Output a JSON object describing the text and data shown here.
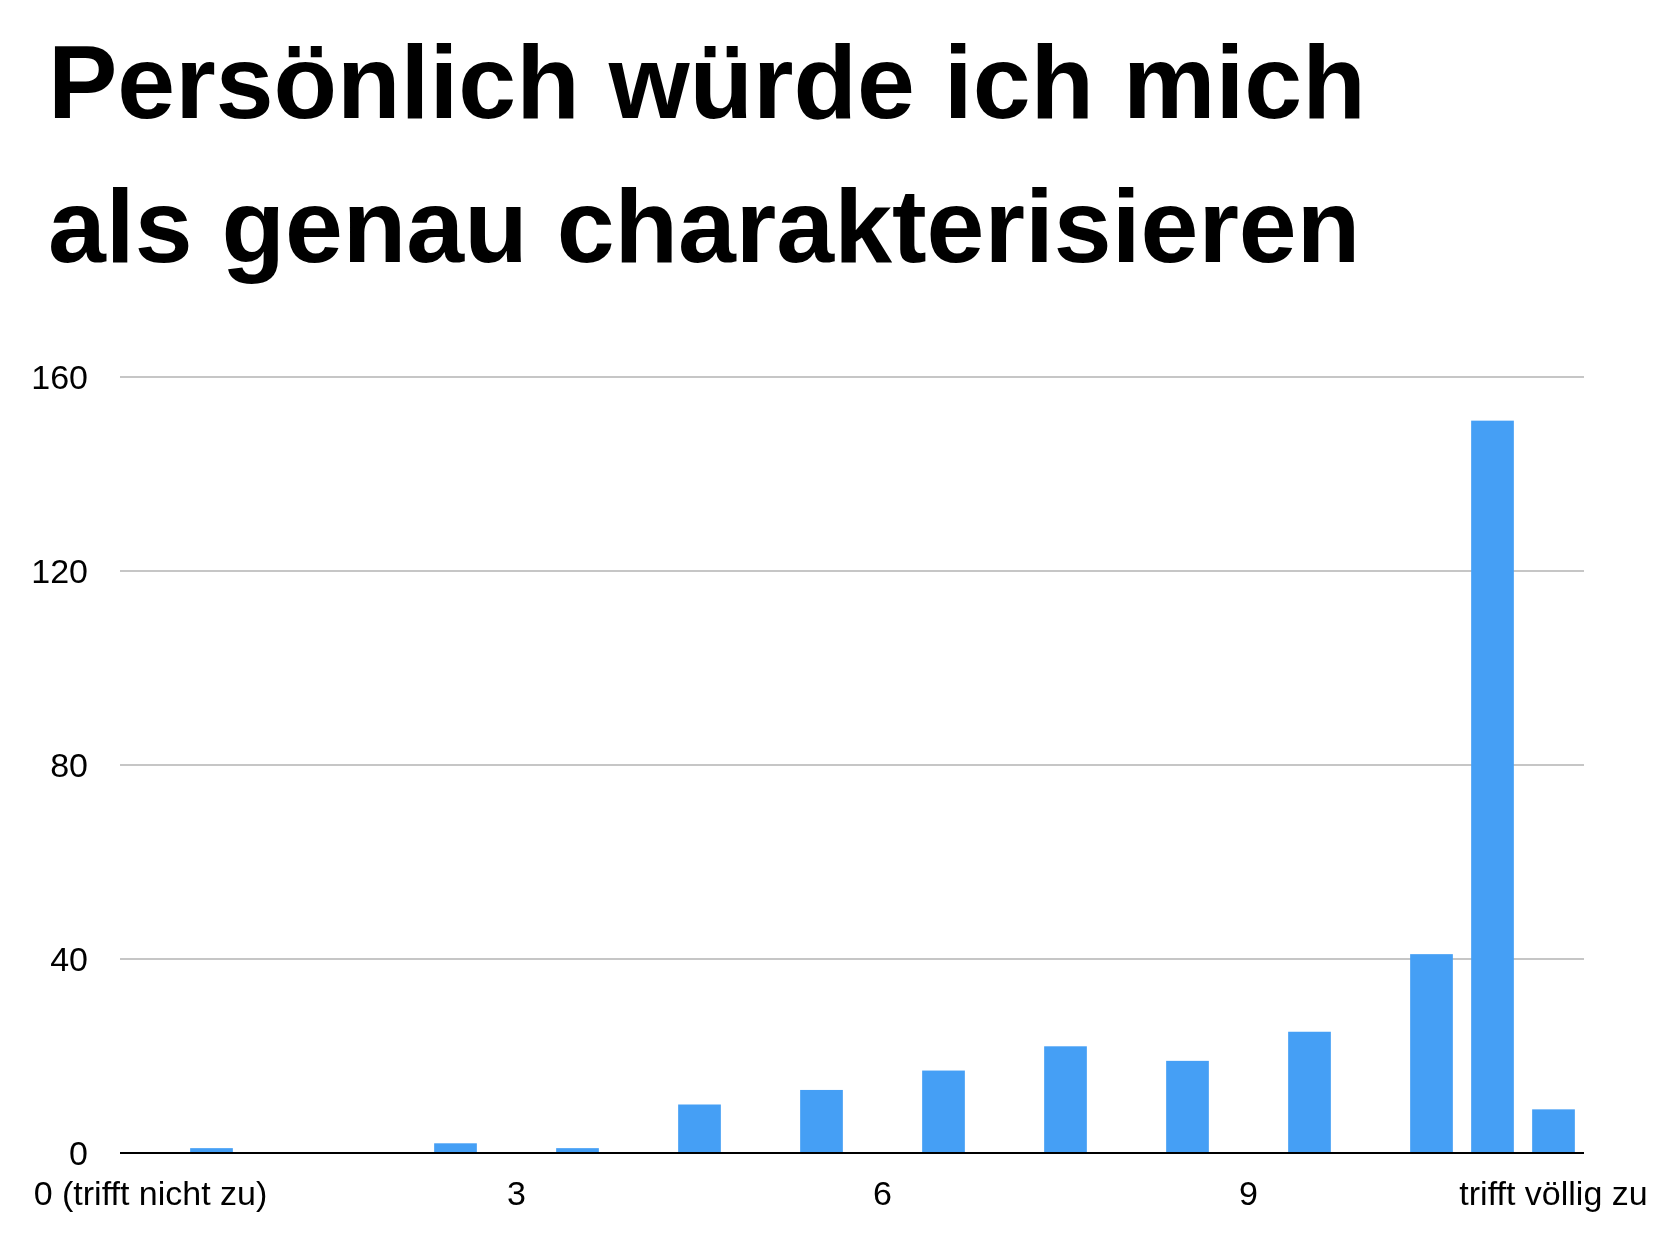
{
  "chart_data": {
    "type": "bar",
    "title": "Persönlich würde ich mich als genau charakterisieren",
    "categories": [
      "0 (trifft nicht zu)",
      null,
      null,
      null,
      null,
      null,
      "3",
      null,
      null,
      null,
      null,
      null,
      "6",
      null,
      null,
      null,
      null,
      null,
      "9",
      null,
      null,
      null,
      null,
      "trifft völlig zu"
    ],
    "values": [
      null,
      1,
      null,
      null,
      null,
      2,
      null,
      1,
      null,
      10,
      null,
      13,
      null,
      17,
      null,
      22,
      null,
      19,
      null,
      25,
      null,
      41,
      151,
      9
    ],
    "color": "#459ff5",
    "ylim": [
      0,
      160
    ],
    "yticks": [
      0,
      40,
      80,
      120,
      160
    ],
    "grid": "y"
  }
}
